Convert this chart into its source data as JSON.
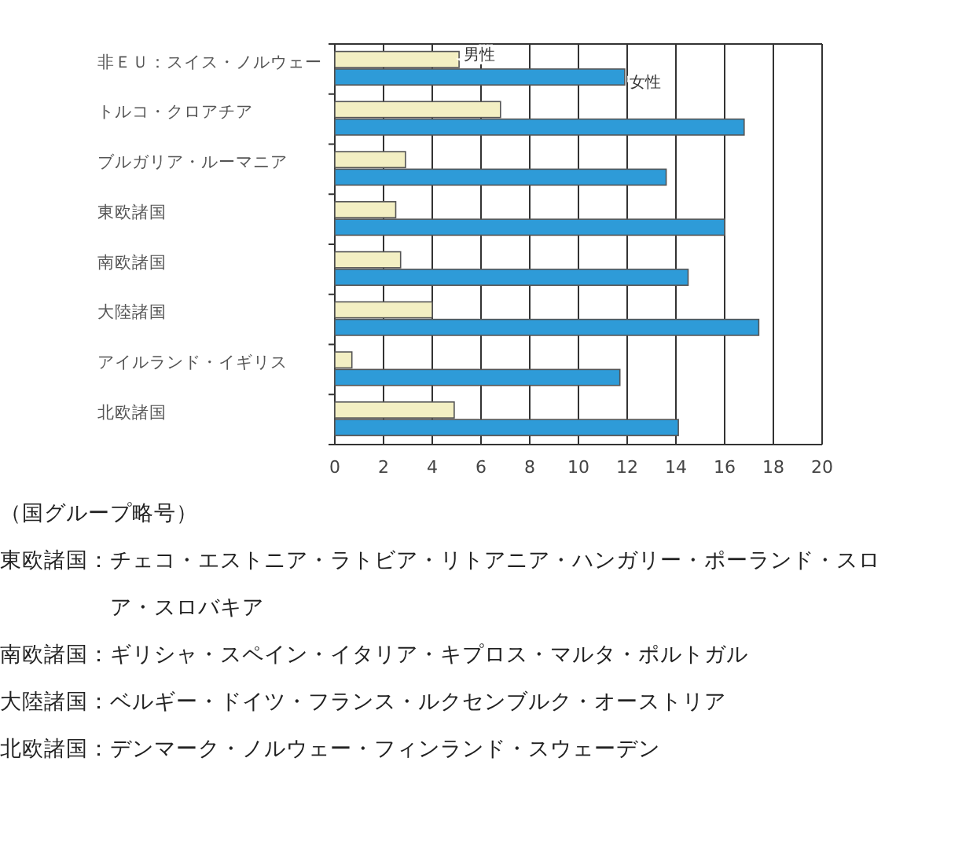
{
  "chart_data": {
    "type": "bar",
    "orientation": "horizontal",
    "categories": [
      "非ＥＵ：スイス・ノルウェー",
      "トルコ・クロアチア",
      "ブルガリア・ルーマニア",
      "東欧諸国",
      "南欧諸国",
      "大陸諸国",
      "アイルランド・イギリス",
      "北欧諸国"
    ],
    "series": [
      {
        "name": "男性",
        "color": "#f3efc3",
        "values": [
          5.1,
          6.8,
          2.9,
          2.5,
          2.7,
          4.0,
          0.7,
          4.9
        ]
      },
      {
        "name": "女性",
        "color": "#2e9bd8",
        "values": [
          11.9,
          16.8,
          13.6,
          16.0,
          14.5,
          17.4,
          11.7,
          14.1
        ]
      }
    ],
    "xlim": [
      0,
      20
    ],
    "xticks": [
      0,
      2,
      4,
      6,
      8,
      10,
      12,
      14,
      16,
      18,
      20
    ],
    "grid": "x",
    "legend": false,
    "annotations": [
      "（国グループ略号）",
      "東欧諸国：チェコ・エストニア・ラトビア・リトアニア・ハンガリー・ポーランド・スロ",
      "　　　　　ア・スロバキア",
      "南欧諸国：ギリシャ・スペイン・イタリア・キプロス・マルタ・ポルトガル",
      "大陸諸国：ベルギー・ドイツ・フランス・ルクセンブルク・オーストリア",
      "北欧諸国：デンマーク・ノルウェー・フィンランド・スウェーデン"
    ]
  }
}
